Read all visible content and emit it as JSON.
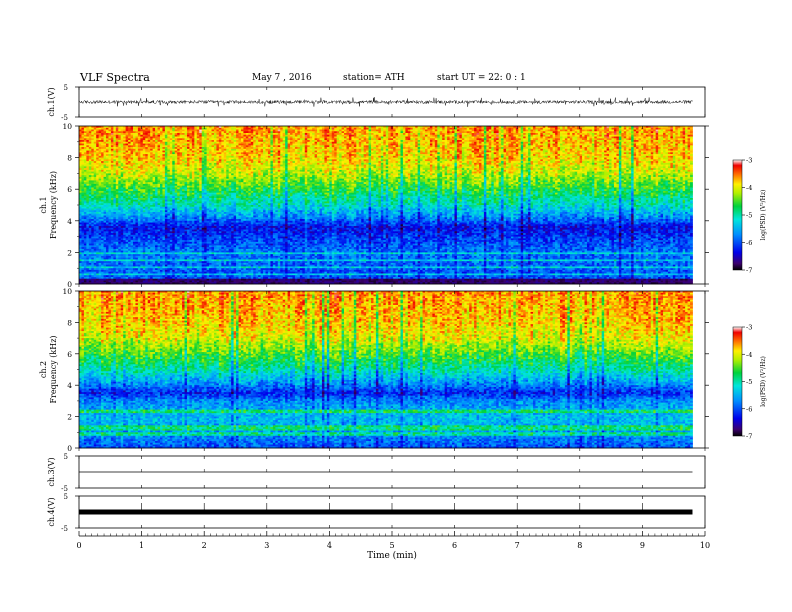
{
  "header": {
    "title": "VLF  Spectra",
    "date": "May 7  , 2016",
    "station": "station= ATH",
    "start": "start  UT  =   22: 0  : 1"
  },
  "chart_data": [
    {
      "type": "line",
      "ylabel": "ch.1(V)",
      "ylim": [
        -5,
        5
      ],
      "yticks": [
        "5",
        "-5"
      ],
      "xlim": [
        0,
        10
      ],
      "x_end": 9.8,
      "pattern": "noise trace around 0 V with spikes up to about ±1.5 V",
      "amplitude_typical": 0.55,
      "amplitude_spike": 1.6
    },
    {
      "type": "heatmap",
      "title": "ch.1",
      "ylabel": "Frequency  (kHz)",
      "ylim": [
        0,
        10
      ],
      "yticks": [
        "0",
        "2",
        "4",
        "6",
        "8",
        "10"
      ],
      "xlim": [
        0,
        10
      ],
      "x_end": 9.8,
      "colorbar_label": "log(PSD) (V²/Hz)",
      "colorbar_range": [
        -7,
        -3
      ],
      "colorbar_ticks": [
        "-3",
        "-4",
        "-5",
        "-6",
        "-7"
      ],
      "profile_khz": [
        [
          0,
          -6.5
        ],
        [
          0.3,
          -6.0
        ],
        [
          1.0,
          -5.9
        ],
        [
          2.0,
          -5.8
        ],
        [
          3.0,
          -6.1
        ],
        [
          3.6,
          -6.3
        ],
        [
          4.2,
          -5.7
        ],
        [
          5.0,
          -5.1
        ],
        [
          6.0,
          -4.6
        ],
        [
          7.0,
          -4.1
        ],
        [
          8.0,
          -3.8
        ],
        [
          10.0,
          -3.6
        ]
      ]
    },
    {
      "type": "heatmap",
      "title": "ch.2",
      "ylabel": "Frequency  (kHz)",
      "ylim": [
        0,
        10
      ],
      "yticks": [
        "0",
        "2",
        "4",
        "6",
        "8",
        "10"
      ],
      "xlim": [
        0,
        10
      ],
      "x_end": 9.8,
      "colorbar_label": "log(PSD) (V²/Hz)",
      "colorbar_range": [
        -7,
        -3
      ],
      "colorbar_ticks": [
        "-3",
        "-4",
        "-5",
        "-6",
        "-7"
      ],
      "profile_khz": [
        [
          0,
          -6.0
        ],
        [
          1.0,
          -5.6
        ],
        [
          2.0,
          -5.4
        ],
        [
          3.0,
          -5.7
        ],
        [
          3.5,
          -6.2
        ],
        [
          4.2,
          -5.6
        ],
        [
          5.0,
          -5.0
        ],
        [
          6.0,
          -4.5
        ],
        [
          7.0,
          -4.0
        ],
        [
          8.0,
          -3.8
        ],
        [
          10.0,
          -3.6
        ]
      ]
    },
    {
      "type": "line",
      "ylabel": "ch.3(V)",
      "ylim": [
        -5,
        5
      ],
      "yticks": [
        "5",
        "-5"
      ],
      "xlim": [
        0,
        10
      ],
      "x_end": 9.8,
      "pattern": "flat line near 0 V",
      "amplitude_typical": 0.05
    },
    {
      "type": "line",
      "ylabel": "ch.4(V)",
      "ylim": [
        -5,
        5
      ],
      "yticks": [
        "5",
        "-5"
      ],
      "xlim": [
        0,
        10
      ],
      "x_end": 9.8,
      "pattern": "thick flat line near 0 V",
      "amplitude_typical": 0.1
    }
  ],
  "xaxis": {
    "label": "Time  (min)",
    "ticks": [
      "0",
      "1",
      "2",
      "3",
      "4",
      "5",
      "6",
      "7",
      "8",
      "9",
      "10"
    ]
  }
}
